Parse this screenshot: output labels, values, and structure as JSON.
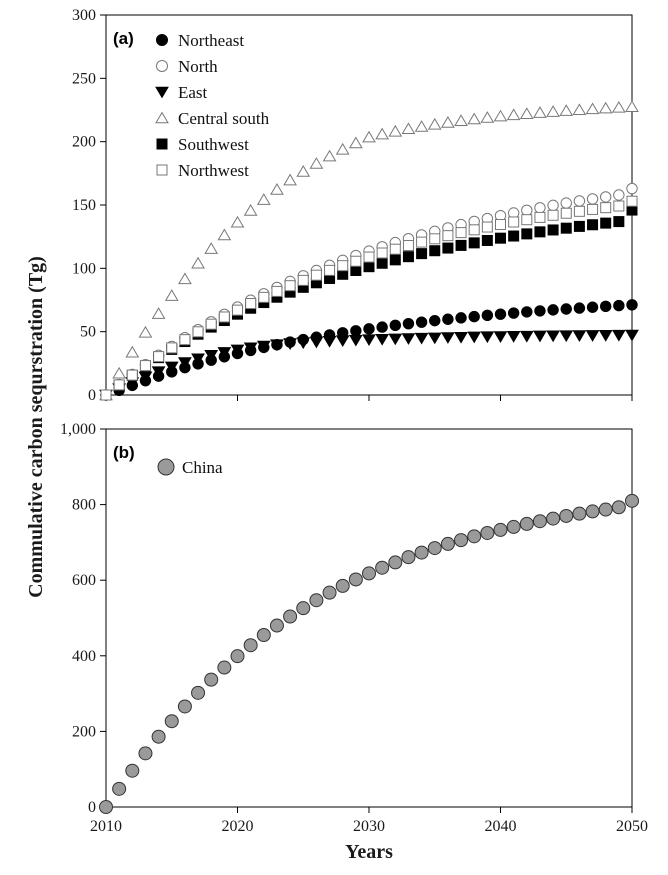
{
  "chart_data": [
    {
      "panel_label": "(a)",
      "type": "scatter",
      "ylim": [
        0,
        300
      ],
      "yticks": [
        0,
        50,
        100,
        150,
        200,
        250,
        300
      ],
      "xlim": [
        2010,
        2050
      ],
      "x": [
        2010,
        2011,
        2012,
        2013,
        2014,
        2015,
        2016,
        2017,
        2018,
        2019,
        2020,
        2021,
        2022,
        2023,
        2024,
        2025,
        2026,
        2027,
        2028,
        2029,
        2030,
        2031,
        2032,
        2033,
        2034,
        2035,
        2036,
        2037,
        2038,
        2039,
        2040,
        2041,
        2042,
        2043,
        2044,
        2045,
        2046,
        2047,
        2048,
        2049,
        2050
      ],
      "legend_position": "top-left",
      "series": [
        {
          "name": "Northeast",
          "marker": "circle-filled",
          "color": "#000000",
          "values": [
            0,
            3.7,
            7.6,
            11.3,
            14.9,
            18.3,
            21.6,
            24.6,
            27.5,
            30.2,
            32.8,
            35.2,
            37.6,
            39.7,
            41.8,
            43.8,
            45.6,
            47.4,
            49.1,
            50.7,
            52.2,
            53.6,
            55.0,
            56.3,
            57.5,
            58.7,
            59.8,
            60.9,
            61.9,
            62.9,
            63.8,
            64.7,
            65.6,
            66.4,
            67.2,
            67.9,
            68.6,
            69.3,
            70.0,
            70.6,
            71.2
          ]
        },
        {
          "name": "North",
          "marker": "circle-open",
          "color": "#777777",
          "values": [
            0,
            8.2,
            16.2,
            23.9,
            31.3,
            38.3,
            45.2,
            51.6,
            57.8,
            63.7,
            69.4,
            74.8,
            79.9,
            84.9,
            89.6,
            94.1,
            98.3,
            102.4,
            106.3,
            110.1,
            113.6,
            117.0,
            120.3,
            123.4,
            126.4,
            129.2,
            131.9,
            134.5,
            137.0,
            139.3,
            141.6,
            143.7,
            145.8,
            147.8,
            149.7,
            151.5,
            153.2,
            154.8,
            156.4,
            157.9,
            163
          ]
        },
        {
          "name": "East",
          "marker": "triangle-down-filled",
          "color": "#000000",
          "values": [
            0,
            5.0,
            9.8,
            14.3,
            18.4,
            22.2,
            25.6,
            28.6,
            31.3,
            33.6,
            35.6,
            37.3,
            38.6,
            39.7,
            40.6,
            41.3,
            41.9,
            42.4,
            42.9,
            43.3,
            43.7,
            44.0,
            44.3,
            44.6,
            44.9,
            45.1,
            45.4,
            45.6,
            45.8,
            46.0,
            46.1,
            46.3,
            46.4,
            46.6,
            46.7,
            46.8,
            46.9,
            47.0,
            47.1,
            47.2,
            47.3
          ]
        },
        {
          "name": "Central south",
          "marker": "triangle-up-open",
          "color": "#777777",
          "values": [
            0,
            17.2,
            33.8,
            49.5,
            64.3,
            78.5,
            91.7,
            104.1,
            115.6,
            126.4,
            136.4,
            145.7,
            154.3,
            162.3,
            169.7,
            176.5,
            182.8,
            188.6,
            194.0,
            199.0,
            203.6,
            206.0,
            208.2,
            210.2,
            212.0,
            213.7,
            215.2,
            216.6,
            217.9,
            219.1,
            220.2,
            221.2,
            222.1,
            223.0,
            223.8,
            224.5,
            225.2,
            225.9,
            226.5,
            227.1,
            227.6
          ]
        },
        {
          "name": "Southwest",
          "marker": "square-filled",
          "color": "#000000",
          "values": [
            0,
            7.9,
            15.5,
            22.7,
            29.5,
            36.0,
            42.2,
            48.0,
            53.6,
            58.8,
            63.8,
            68.5,
            73.0,
            77.2,
            81.2,
            85.0,
            88.6,
            92.0,
            95.3,
            98.3,
            101.3,
            104.0,
            106.7,
            109.2,
            111.6,
            113.9,
            116.0,
            118.1,
            120.1,
            122.0,
            123.8,
            125.5,
            127.2,
            128.8,
            130.3,
            131.7,
            133.1,
            134.4,
            135.7,
            136.9,
            146
          ]
        },
        {
          "name": "Northwest",
          "marker": "square-open",
          "color": "#777777",
          "values": [
            0,
            8.0,
            15.7,
            23.2,
            30.3,
            37.2,
            43.7,
            49.9,
            55.9,
            61.6,
            67.0,
            72.2,
            77.1,
            81.8,
            86.3,
            90.5,
            94.6,
            98.4,
            102.1,
            105.6,
            108.9,
            112.1,
            115.1,
            118.0,
            120.7,
            123.3,
            125.8,
            128.2,
            130.4,
            132.6,
            134.6,
            136.6,
            138.4,
            140.2,
            141.9,
            143.5,
            145.0,
            146.5,
            147.9,
            149.2,
            153
          ]
        }
      ]
    },
    {
      "panel_label": "(b)",
      "type": "scatter",
      "ylim": [
        0,
        1000
      ],
      "yticks": [
        0,
        200,
        400,
        600,
        800,
        1000
      ],
      "ytick_labels": [
        "0",
        "200",
        "400",
        "600",
        "800",
        "1,000"
      ],
      "xlim": [
        2010,
        2050
      ],
      "xticks": [
        2010,
        2020,
        2030,
        2040,
        2050
      ],
      "xlabel": "Years",
      "x": [
        2010,
        2011,
        2012,
        2013,
        2014,
        2015,
        2016,
        2017,
        2018,
        2019,
        2020,
        2021,
        2022,
        2023,
        2024,
        2025,
        2026,
        2027,
        2028,
        2029,
        2030,
        2031,
        2032,
        2033,
        2034,
        2035,
        2036,
        2037,
        2038,
        2039,
        2040,
        2041,
        2042,
        2043,
        2044,
        2045,
        2046,
        2047,
        2048,
        2049,
        2050
      ],
      "legend_position": "top-left",
      "series": [
        {
          "name": "China",
          "marker": "circle-filled",
          "color": "#9a9a9a",
          "values": [
            0,
            48,
            96,
            142,
            186,
            227,
            266,
            302,
            337,
            369,
            399,
            428,
            455,
            480,
            504,
            526,
            547,
            567,
            585,
            602,
            618,
            633,
            647,
            661,
            673,
            685,
            696,
            706,
            716,
            725,
            733,
            741,
            749,
            756,
            763,
            770,
            776,
            782,
            787,
            793,
            810
          ]
        }
      ]
    }
  ],
  "shared_ylabel": "Commulative carbon sequrstration (Tg)"
}
